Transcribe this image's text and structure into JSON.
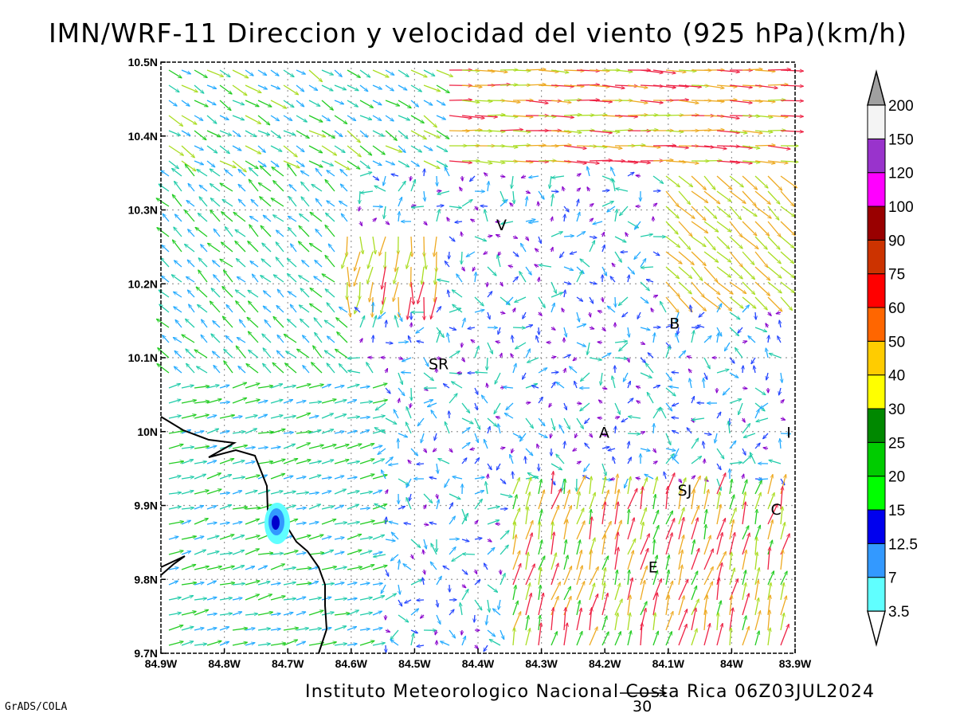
{
  "title": "IMN/WRF-11 Direccion y velocidad del viento (925 hPa)(km/h)",
  "footer": "Instituto Meteorologico Nacional Costa Rica 06Z03JUL2024",
  "credit": "GrADS/COLA",
  "reference_vector_label": "30",
  "map": {
    "lon_range": [
      -84.9,
      -83.9
    ],
    "lat_range": [
      9.7,
      10.5
    ],
    "grid": "dotted",
    "x_ticks": [
      "84.9W",
      "84.8W",
      "84.7W",
      "84.6W",
      "84.5W",
      "84.4W",
      "84.3W",
      "84.2W",
      "84.1W",
      "84W",
      "83.9W"
    ],
    "y_ticks": [
      "9.7N",
      "9.8N",
      "9.9N",
      "10N",
      "10.1N",
      "10.2N",
      "10.3N",
      "10.4N",
      "10.5N"
    ],
    "places": [
      {
        "label": "V",
        "lon": -84.363,
        "lat": 10.28
      },
      {
        "label": "SR",
        "lon": -84.462,
        "lat": 10.092
      },
      {
        "label": "B",
        "lon": -84.09,
        "lat": 10.147
      },
      {
        "label": "A",
        "lon": -84.201,
        "lat": 9.999
      },
      {
        "label": "I",
        "lon": -83.91,
        "lat": 9.999
      },
      {
        "label": "SJ",
        "lon": -84.074,
        "lat": 9.921
      },
      {
        "label": "C",
        "lon": -83.93,
        "lat": 9.895
      },
      {
        "label": "E",
        "lon": -84.124,
        "lat": 9.817
      }
    ]
  },
  "colorbar": {
    "levels": [
      "3.5",
      "7",
      "12.5",
      "15",
      "20",
      "25",
      "30",
      "40",
      "50",
      "60",
      "75",
      "90",
      "100",
      "120",
      "150",
      "200"
    ],
    "colors": [
      "#60ffff",
      "#3399ff",
      "#0000ee",
      "#00ff00",
      "#00cc00",
      "#008800",
      "#ffff00",
      "#ffcc00",
      "#ff6600",
      "#ff0000",
      "#cc3300",
      "#990000",
      "#ff00ff",
      "#9933cc",
      "#f4f4f4",
      "#a0a0a0"
    ]
  },
  "vector_colors": {
    "calm": "#8800cc",
    "weak": "#2244ff",
    "light": "#22aaff",
    "moderate": "#22ccaa",
    "fresh": "#22cc22",
    "strong": "#aadd22",
    "very_strong": "#eeaa22",
    "gale": "#ee2244"
  }
}
